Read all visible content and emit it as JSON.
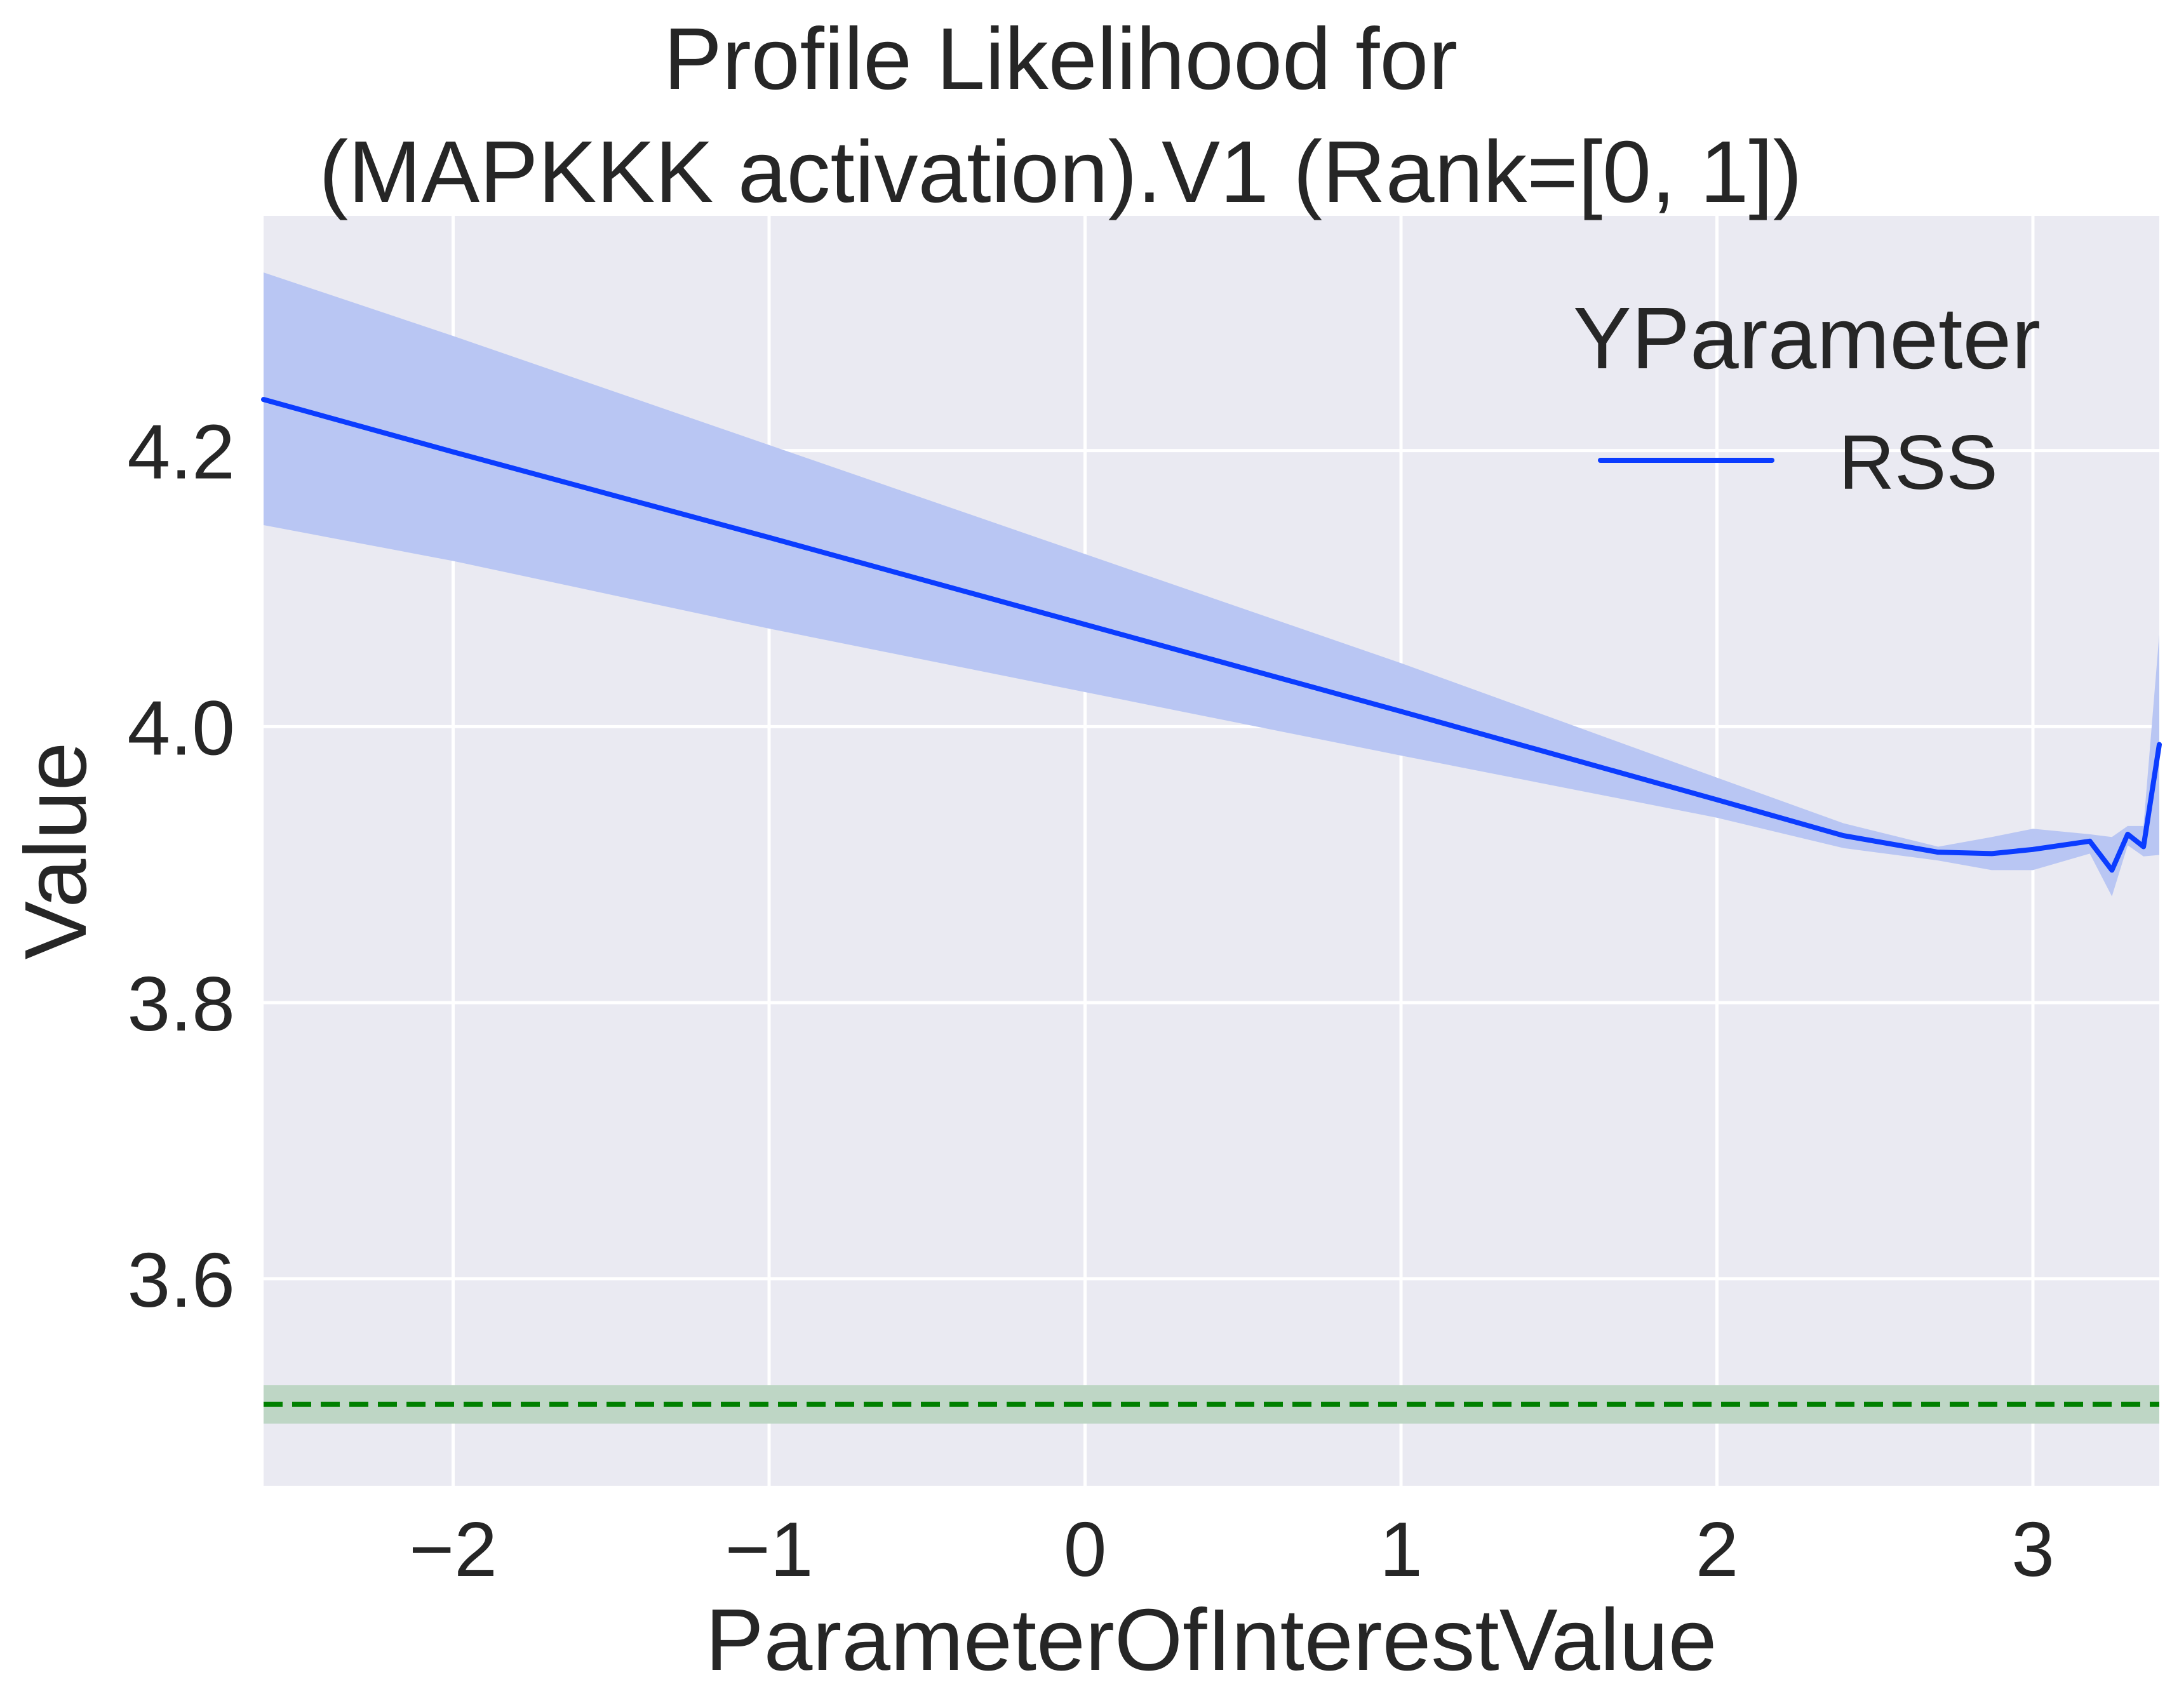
{
  "chart_data": {
    "type": "line",
    "title_lines": [
      "Profile Likelihood for",
      "(MAPKKK activation).V1 (Rank=[0, 1])"
    ],
    "xlabel": "ParameterOfInterestValue",
    "ylabel": "Value",
    "xlim": [
      -2.6,
      3.4
    ],
    "ylim": [
      3.45,
      4.37
    ],
    "x_ticks": [
      -2,
      -1,
      0,
      1,
      2,
      3
    ],
    "x_tick_labels": [
      "−2",
      "−1",
      "0",
      "1",
      "2",
      "3"
    ],
    "y_ticks": [
      3.6,
      3.8,
      4.0,
      4.2
    ],
    "y_tick_labels": [
      "3.6",
      "3.8",
      "4.0",
      "4.2"
    ],
    "grid": true,
    "legend": {
      "title": "YParameter",
      "position": "top-right",
      "entries": [
        "RSS"
      ]
    },
    "series": [
      {
        "name": "RSS",
        "color": "#0b3cff",
        "band_color": "#b9c6f3",
        "x": [
          -2.6,
          -2.0,
          -1.0,
          0.0,
          1.0,
          2.0,
          2.4,
          2.7,
          2.87,
          3.0,
          3.18,
          3.25,
          3.3,
          3.35,
          3.4
        ],
        "y": [
          4.237,
          4.199,
          4.137,
          4.074,
          4.011,
          3.947,
          3.921,
          3.909,
          3.908,
          3.911,
          3.917,
          3.896,
          3.922,
          3.913,
          3.987
        ],
        "upper": [
          4.329,
          4.283,
          4.204,
          4.125,
          4.046,
          3.963,
          3.93,
          3.913,
          3.92,
          3.926,
          3.922,
          3.92,
          3.928,
          3.928,
          4.067
        ],
        "lower": [
          4.146,
          4.12,
          4.071,
          4.025,
          3.979,
          3.934,
          3.912,
          3.903,
          3.896,
          3.896,
          3.908,
          3.877,
          3.914,
          3.906,
          3.907
        ]
      }
    ],
    "reference_line": {
      "y": 3.509,
      "band": [
        3.495,
        3.523
      ],
      "color": "#008000",
      "band_color": "#bed6c5",
      "style": "dashed"
    }
  }
}
